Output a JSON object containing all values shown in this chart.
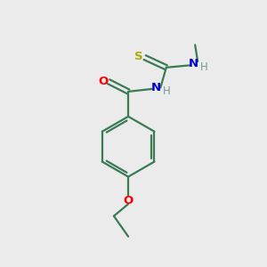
{
  "background_color": "#ebebeb",
  "bond_color": "#3a7a55",
  "atom_colors": {
    "S": "#aaaa00",
    "N": "#0000cc",
    "O": "#ff0000",
    "C": "#3a7a55",
    "H": "#7a9a8a"
  },
  "lw": 1.6,
  "fs": 8.5
}
